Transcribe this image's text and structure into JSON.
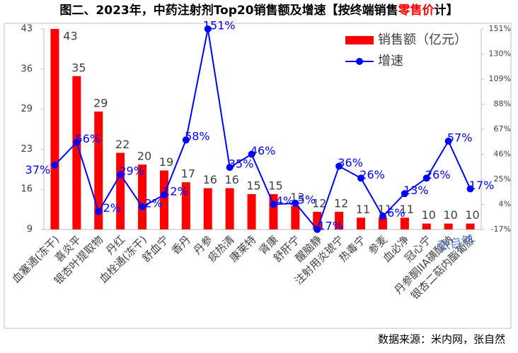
{
  "chart_data": {
    "type": "bar_line",
    "title_parts": [
      "图二、2023年，中药注射剂Top20销售额及增速【按终端销售",
      "零售价",
      "计】"
    ],
    "title_colors": [
      "#000000",
      "#ff0000",
      "#000000"
    ],
    "categories": [
      "血塞通(冻干)",
      "喜炎平",
      "银杏叶提取物",
      "丹红",
      "血栓通(冻干)",
      "舒血宁",
      "香丹",
      "丹参",
      "痰热清",
      "康莱特",
      "肾康",
      "舒肝宁",
      "醒脑静",
      "注射用炎琥宁",
      "热毒宁",
      "参麦",
      "血必净",
      "冠心宁",
      "丹参酮IIA磺酸钠",
      "银杏二萜内酯葡胺"
    ],
    "series": [
      {
        "name": "销售额（亿元）",
        "type": "bar",
        "color": "#ff0000",
        "values": [
          43,
          35,
          29,
          22,
          20,
          19,
          17,
          16,
          16,
          15,
          15,
          13,
          12,
          12,
          11,
          11,
          11,
          10,
          10,
          10
        ]
      },
      {
        "name": "增速",
        "type": "line",
        "axis": "y2",
        "color": "#0000ff",
        "values": [
          37,
          56,
          -2,
          29,
          2,
          12,
          58,
          151,
          35,
          46,
          4,
          5,
          -17,
          36,
          26,
          -6,
          13,
          26,
          57,
          17
        ],
        "value_labels": [
          "37%",
          "56%",
          "-2%",
          "29%",
          "2%",
          "12%",
          "58%",
          "151%",
          "35%",
          "46%",
          "4%",
          "5%",
          "-17%",
          "36%",
          "26%",
          "-6%",
          "13%",
          "26%",
          "57%",
          "17%"
        ]
      }
    ],
    "ylim": [
      9,
      43
    ],
    "yticks": [
      9,
      {
        "value": 15.8,
        "label": "16"
      },
      {
        "value": 22.6,
        "label": "23"
      },
      {
        "value": 29.4,
        "label": "29"
      },
      {
        "value": 36.2,
        "label": "36"
      },
      43
    ],
    "y2lim": [
      -17,
      151
    ],
    "y2ticks": [
      {
        "value": -17,
        "label": "-17%"
      },
      {
        "value": 4,
        "label": "4%"
      },
      {
        "value": 25,
        "label": "25%"
      },
      {
        "value": 46,
        "label": "46%"
      },
      {
        "value": 67,
        "label": "67%"
      },
      {
        "value": 88,
        "label": "88%"
      },
      {
        "value": 109,
        "label": "109%"
      },
      {
        "value": 130,
        "label": "130%"
      },
      {
        "value": 151,
        "label": "151%"
      }
    ],
    "watermark": "张自然",
    "source": "数据来源：米内网，张自然"
  }
}
